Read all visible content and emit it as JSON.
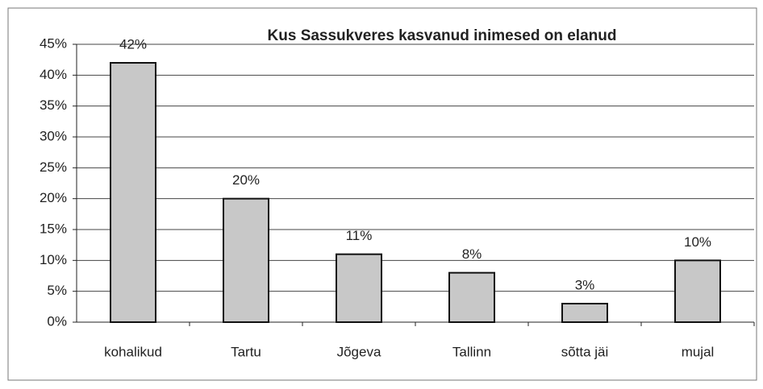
{
  "chart_data": {
    "type": "bar",
    "title": "Kus Sassukveres kasvanud inimesed on elanud",
    "categories": [
      "kohalikud",
      "Tartu",
      "Jõgeva",
      "Tallinn",
      "sõtta jäi",
      "mujal"
    ],
    "values": [
      42,
      20,
      11,
      8,
      3,
      10
    ],
    "value_labels": [
      "42%",
      "20%",
      "11%",
      "8%",
      "3%",
      "10%"
    ],
    "color": "#c8c8c8",
    "ylim": [
      0,
      45
    ],
    "yticks": [
      {
        "value": 0,
        "label": "0%"
      },
      {
        "value": 5,
        "label": "5%"
      },
      {
        "value": 10,
        "label": "10%"
      },
      {
        "value": 15,
        "label": "15%"
      },
      {
        "value": 20,
        "label": "20%"
      },
      {
        "value": 25,
        "label": "25%"
      },
      {
        "value": 30,
        "label": "30%"
      },
      {
        "value": 35,
        "label": "35%"
      },
      {
        "value": 40,
        "label": "40%"
      },
      {
        "value": 45,
        "label": "45%"
      }
    ],
    "grid": true
  }
}
